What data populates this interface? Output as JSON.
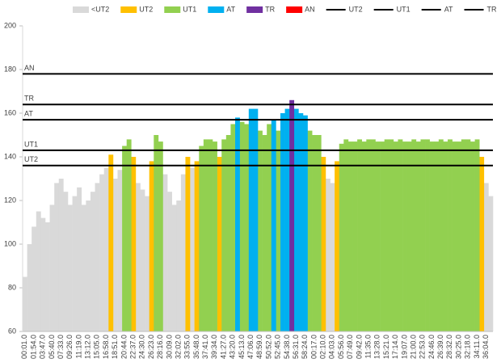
{
  "chart_data": {
    "type": "bar",
    "categories": [
      "00:01.0",
      null,
      "01:54.0",
      null,
      "03:47.0",
      null,
      "05:40.0",
      null,
      "07:33.0",
      null,
      "09:26.0",
      null,
      "11:19.0",
      null,
      "13:12.0",
      null,
      "15:05.0",
      null,
      "16:58.0",
      null,
      "18:51.0",
      null,
      "20:44.0",
      null,
      "22:37.0",
      null,
      "24:30.0",
      null,
      "26:23.0",
      null,
      "28:16.0",
      null,
      "30:09.0",
      null,
      "32:02.0",
      null,
      "33:55.0",
      null,
      "35:48.0",
      null,
      "37:41.0",
      null,
      "39:34.0",
      null,
      "41:27.0",
      null,
      "43:20.0",
      null,
      "45:13.0",
      null,
      "47:06.0",
      null,
      "48:59.0",
      null,
      "50:52.0",
      null,
      "52:45.0",
      null,
      "54:38.0",
      null,
      "56:31.0",
      null,
      "58:24.0",
      null,
      "00:17.0",
      null,
      "02:10.0",
      null,
      "04:03.0",
      null,
      "05:56.0",
      null,
      "07:49.0",
      null,
      "09:42.0",
      null,
      "11:35.0",
      null,
      "13:28.0",
      null,
      "15:21.0",
      null,
      "17:14.0",
      null,
      "19:07.0",
      null,
      "21:00.0",
      null,
      "22:53.0",
      null,
      "24:46.0",
      null,
      "26:39.0",
      null,
      "28:32.0",
      null,
      "30:25.0",
      null,
      "32:18.0",
      null,
      "34:11.0",
      null,
      "36:04.0",
      null
    ],
    "series": [
      {
        "name": "<UT2",
        "color": "#d9d9d9",
        "values": [
          85,
          100,
          108,
          115,
          112,
          110,
          118,
          128,
          130,
          124,
          118,
          122,
          126,
          118,
          120,
          124,
          128,
          132,
          135,
          null,
          130,
          134,
          null,
          null,
          null,
          128,
          125,
          122,
          null,
          null,
          null,
          132,
          124,
          118,
          120,
          132,
          null,
          135,
          null,
          null,
          null,
          null,
          null,
          null,
          null,
          null,
          null,
          null,
          null,
          null,
          null,
          null,
          null,
          null,
          null,
          null,
          null,
          null,
          null,
          null,
          null,
          null,
          null,
          null,
          null,
          null,
          null,
          130,
          128,
          null,
          null,
          null,
          null,
          null,
          null,
          null,
          null,
          null,
          null,
          null,
          null,
          null,
          null,
          null,
          null,
          null,
          null,
          null,
          null,
          null,
          null,
          null,
          null,
          null,
          null,
          null,
          null,
          null,
          null,
          null,
          null,
          null,
          128,
          122
        ]
      },
      {
        "name": "UT2",
        "color": "#ffc000",
        "values": [
          null,
          null,
          null,
          null,
          null,
          null,
          null,
          null,
          null,
          null,
          null,
          null,
          null,
          null,
          null,
          null,
          null,
          null,
          null,
          141,
          null,
          null,
          null,
          null,
          140,
          null,
          null,
          null,
          138,
          null,
          null,
          null,
          null,
          null,
          null,
          null,
          140,
          null,
          138,
          null,
          null,
          null,
          null,
          140,
          null,
          null,
          null,
          null,
          null,
          null,
          null,
          null,
          null,
          null,
          null,
          null,
          null,
          null,
          null,
          null,
          null,
          null,
          null,
          null,
          null,
          null,
          140,
          null,
          null,
          138,
          null,
          null,
          null,
          null,
          null,
          null,
          null,
          null,
          null,
          null,
          null,
          null,
          null,
          null,
          null,
          null,
          null,
          null,
          null,
          null,
          null,
          null,
          null,
          null,
          null,
          null,
          null,
          null,
          null,
          null,
          null,
          140,
          null,
          null
        ]
      },
      {
        "name": "UT1",
        "color": "#92d050",
        "values": [
          null,
          null,
          null,
          null,
          null,
          null,
          null,
          null,
          null,
          null,
          null,
          null,
          null,
          null,
          null,
          null,
          null,
          null,
          null,
          null,
          null,
          null,
          145,
          148,
          null,
          null,
          null,
          null,
          null,
          150,
          147,
          null,
          null,
          null,
          null,
          null,
          null,
          null,
          null,
          145,
          148,
          148,
          147,
          null,
          148,
          150,
          155,
          null,
          156,
          155,
          null,
          null,
          152,
          150,
          155,
          null,
          152,
          null,
          null,
          null,
          null,
          null,
          null,
          152,
          150,
          150,
          null,
          null,
          null,
          null,
          146,
          148,
          147,
          147,
          148,
          147,
          148,
          148,
          147,
          147,
          148,
          148,
          147,
          148,
          147,
          147,
          148,
          147,
          148,
          148,
          147,
          147,
          148,
          147,
          148,
          147,
          147,
          148,
          148,
          147,
          148,
          null,
          null,
          null
        ]
      },
      {
        "name": "AT",
        "color": "#00b0f0",
        "values": [
          null,
          null,
          null,
          null,
          null,
          null,
          null,
          null,
          null,
          null,
          null,
          null,
          null,
          null,
          null,
          null,
          null,
          null,
          null,
          null,
          null,
          null,
          null,
          null,
          null,
          null,
          null,
          null,
          null,
          null,
          null,
          null,
          null,
          null,
          null,
          null,
          null,
          null,
          null,
          null,
          null,
          null,
          null,
          null,
          null,
          null,
          null,
          158,
          null,
          null,
          162,
          162,
          null,
          null,
          null,
          157,
          null,
          160,
          162,
          null,
          162,
          160,
          159,
          null,
          null,
          null,
          null,
          null,
          null,
          null,
          null,
          null,
          null,
          null,
          null,
          null,
          null,
          null,
          null,
          null,
          null,
          null,
          null,
          null,
          null,
          null,
          null,
          null,
          null,
          null,
          null,
          null,
          null,
          null,
          null,
          null,
          null,
          null,
          null,
          null,
          null,
          null,
          null,
          null
        ]
      },
      {
        "name": "TR",
        "color": "#7030a0",
        "values": [
          null,
          null,
          null,
          null,
          null,
          null,
          null,
          null,
          null,
          null,
          null,
          null,
          null,
          null,
          null,
          null,
          null,
          null,
          null,
          null,
          null,
          null,
          null,
          null,
          null,
          null,
          null,
          null,
          null,
          null,
          null,
          null,
          null,
          null,
          null,
          null,
          null,
          null,
          null,
          null,
          null,
          null,
          null,
          null,
          null,
          null,
          null,
          null,
          null,
          null,
          null,
          null,
          null,
          null,
          null,
          null,
          null,
          null,
          null,
          166,
          null,
          null,
          null,
          null,
          null,
          null,
          null,
          null,
          null,
          null,
          null,
          null,
          null,
          null,
          null,
          null,
          null,
          null,
          null,
          null,
          null,
          null,
          null,
          null,
          null,
          null,
          null,
          null,
          null,
          null,
          null,
          null,
          null,
          null,
          null,
          null,
          null,
          null,
          null,
          null,
          null,
          null,
          null,
          null
        ]
      },
      {
        "name": "AN",
        "color": "#ff0000",
        "values": [
          null,
          null,
          null,
          null,
          null,
          null,
          null,
          null,
          null,
          null,
          null,
          null,
          null,
          null,
          null,
          null,
          null,
          null,
          null,
          null,
          null,
          null,
          null,
          null,
          null,
          null,
          null,
          null,
          null,
          null,
          null,
          null,
          null,
          null,
          null,
          null,
          null,
          null,
          null,
          null,
          null,
          null,
          null,
          null,
          null,
          null,
          null,
          null,
          null,
          null,
          null,
          null,
          null,
          null,
          null,
          null,
          null,
          null,
          null,
          null,
          null,
          null,
          null,
          null,
          null,
          null,
          null,
          null,
          null,
          null,
          null,
          null,
          null,
          null,
          null,
          null,
          null,
          null,
          null,
          null,
          null,
          null,
          null,
          null,
          null,
          null,
          null,
          null,
          null,
          null,
          null,
          null,
          null,
          null,
          null,
          null,
          null,
          null,
          null,
          null,
          null,
          null,
          null,
          null
        ]
      }
    ],
    "lines": [
      {
        "name": "UT2",
        "color": "#000000",
        "value": 136
      },
      {
        "name": "UT1",
        "color": "#000000",
        "value": 143
      },
      {
        "name": "AT",
        "color": "#000000",
        "value": 157
      },
      {
        "name": "TR",
        "color": "#000000",
        "value": 164
      },
      {
        "name": "AN",
        "color": "#000000",
        "value": 178
      }
    ],
    "ylim": [
      60,
      200
    ],
    "yticks": [
      60,
      80,
      100,
      120,
      140,
      160,
      180,
      200
    ],
    "legend": "top"
  }
}
